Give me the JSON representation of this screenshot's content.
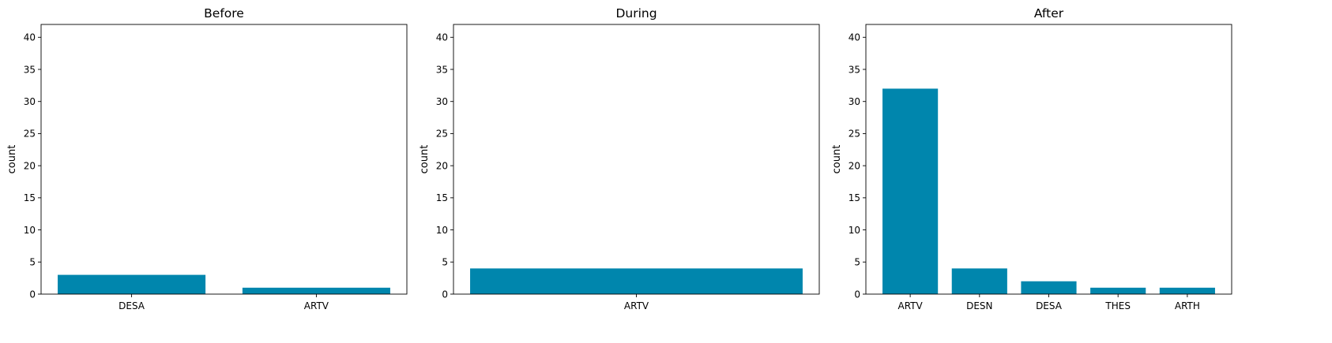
{
  "bar_color": "#0086ad",
  "chart_data": [
    {
      "type": "bar",
      "title": "Before",
      "xlabel": "",
      "ylabel": "count",
      "ylim": [
        0,
        42
      ],
      "yticks": [
        0,
        5,
        10,
        15,
        20,
        25,
        30,
        35,
        40
      ],
      "categories": [
        "DESA",
        "ARTV"
      ],
      "values": [
        3,
        1
      ],
      "grid": false
    },
    {
      "type": "bar",
      "title": "During",
      "xlabel": "",
      "ylabel": "count",
      "ylim": [
        0,
        42
      ],
      "yticks": [
        0,
        5,
        10,
        15,
        20,
        25,
        30,
        35,
        40
      ],
      "categories": [
        "ARTV"
      ],
      "values": [
        4
      ],
      "grid": false
    },
    {
      "type": "bar",
      "title": "After",
      "xlabel": "",
      "ylabel": "count",
      "ylim": [
        0,
        42
      ],
      "yticks": [
        0,
        5,
        10,
        15,
        20,
        25,
        30,
        35,
        40
      ],
      "categories": [
        "ARTV",
        "DESN",
        "DESA",
        "THES",
        "ARTH"
      ],
      "values": [
        32,
        4,
        2,
        1,
        1
      ],
      "grid": false
    }
  ]
}
